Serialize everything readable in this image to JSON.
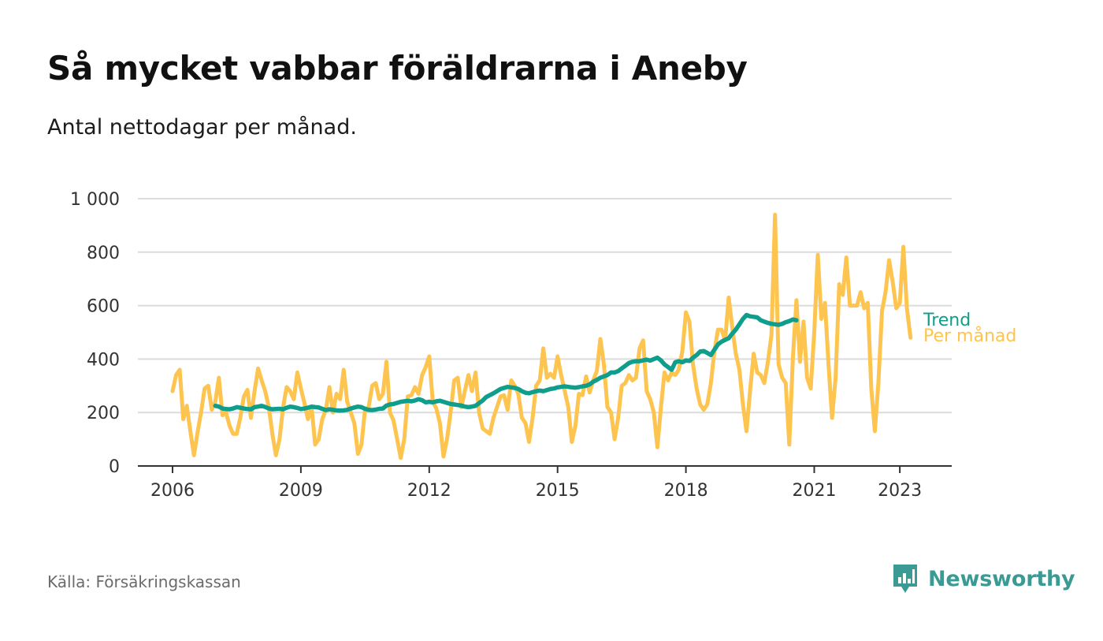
{
  "header": {
    "title": "Så mycket vabbar föräldrarna i Aneby",
    "subtitle": "Antal nettodagar per månad."
  },
  "footer": {
    "source": "Källa: Försäkringskassan",
    "brand": "Newsworthy"
  },
  "colors": {
    "monthly": "#FDC44F",
    "trend": "#0F9D8C",
    "brand": "#3B9B94"
  },
  "chart_data": {
    "type": "line",
    "title": "Så mycket vabbar föräldrarna i Aneby",
    "subtitle": "Antal nettodagar per månad.",
    "xlabel": "",
    "ylabel": "",
    "x_start": "2006-01",
    "x_end": "2023-05",
    "x_interval": "month",
    "ylim": [
      0,
      1000
    ],
    "yticks": [
      {
        "value": 0,
        "label": "0"
      },
      {
        "value": 200,
        "label": "200"
      },
      {
        "value": 400,
        "label": "400"
      },
      {
        "value": 600,
        "label": "600"
      },
      {
        "value": 800,
        "label": "800"
      },
      {
        "value": 1000,
        "label": "1 000"
      }
    ],
    "xticks": [
      {
        "value": "2006-01",
        "label": "2006"
      },
      {
        "value": "2009-01",
        "label": "2009"
      },
      {
        "value": "2012-01",
        "label": "2012"
      },
      {
        "value": "2015-01",
        "label": "2015"
      },
      {
        "value": "2018-01",
        "label": "2018"
      },
      {
        "value": "2021-01",
        "label": "2021"
      },
      {
        "value": "2023-01",
        "label": "2023"
      }
    ],
    "grid": true,
    "legend": "direct labels at line ends",
    "series": [
      {
        "name": "Per månad",
        "start": "2006-01",
        "values": [
          280,
          340,
          360,
          175,
          225,
          130,
          40,
          125,
          200,
          290,
          300,
          210,
          240,
          330,
          190,
          200,
          150,
          120,
          120,
          180,
          260,
          285,
          180,
          280,
          365,
          320,
          280,
          220,
          120,
          40,
          100,
          220,
          295,
          280,
          250,
          350,
          290,
          235,
          175,
          220,
          80,
          100,
          175,
          210,
          295,
          200,
          270,
          250,
          360,
          240,
          200,
          160,
          45,
          80,
          210,
          220,
          300,
          310,
          250,
          270,
          390,
          200,
          170,
          100,
          30,
          100,
          260,
          265,
          295,
          270,
          340,
          370,
          410,
          240,
          215,
          160,
          35,
          100,
          200,
          320,
          330,
          220,
          280,
          340,
          280,
          350,
          200,
          140,
          130,
          120,
          180,
          220,
          260,
          265,
          210,
          320,
          300,
          270,
          180,
          160,
          90,
          180,
          300,
          320,
          440,
          330,
          345,
          330,
          410,
          340,
          280,
          220,
          90,
          150,
          270,
          265,
          335,
          275,
          320,
          355,
          475,
          380,
          220,
          200,
          100,
          180,
          300,
          310,
          340,
          320,
          330,
          440,
          470,
          280,
          250,
          200,
          70,
          220,
          350,
          320,
          350,
          340,
          360,
          430,
          575,
          540,
          380,
          290,
          230,
          210,
          230,
          310,
          430,
          510,
          510,
          470,
          630,
          520,
          420,
          360,
          230,
          130,
          280,
          420,
          350,
          340,
          310,
          390,
          490,
          940,
          380,
          330,
          310,
          80,
          400,
          620,
          390,
          540,
          330,
          290,
          500,
          790,
          550,
          610,
          380,
          180,
          330,
          680,
          640,
          780,
          600,
          600,
          600,
          650,
          590,
          610,
          290,
          130,
          310,
          580,
          650,
          770,
          690,
          590,
          610,
          820,
          590,
          480
        ]
      },
      {
        "name": "Trend",
        "start": "2007-01",
        "values": [
          225,
          222,
          215,
          213,
          212,
          215,
          220,
          218,
          215,
          213,
          212,
          220,
          222,
          225,
          221,
          215,
          212,
          213,
          214,
          212,
          218,
          222,
          220,
          217,
          213,
          215,
          218,
          222,
          220,
          219,
          214,
          209,
          212,
          210,
          208,
          207,
          208,
          210,
          215,
          219,
          222,
          220,
          214,
          210,
          209,
          211,
          214,
          215,
          226,
          230,
          232,
          236,
          240,
          242,
          244,
          242,
          245,
          250,
          246,
          238,
          240,
          238,
          242,
          244,
          240,
          236,
          232,
          230,
          228,
          226,
          222,
          220,
          222,
          225,
          235,
          245,
          258,
          265,
          272,
          280,
          288,
          292,
          296,
          294,
          292,
          288,
          280,
          274,
          272,
          276,
          280,
          282,
          280,
          284,
          288,
          290,
          294,
          296,
          298,
          296,
          294,
          293,
          295,
          298,
          300,
          305,
          315,
          322,
          330,
          335,
          340,
          350,
          350,
          355,
          365,
          375,
          385,
          390,
          392,
          392,
          395,
          398,
          394,
          400,
          405,
          395,
          380,
          370,
          360,
          388,
          392,
          388,
          395,
          393,
          405,
          415,
          428,
          430,
          423,
          415,
          435,
          455,
          465,
          472,
          478,
          495,
          510,
          530,
          550,
          565,
          560,
          558,
          556,
          545,
          540,
          535,
          532,
          530,
          528,
          532,
          538,
          542,
          548,
          545
        ]
      }
    ]
  }
}
